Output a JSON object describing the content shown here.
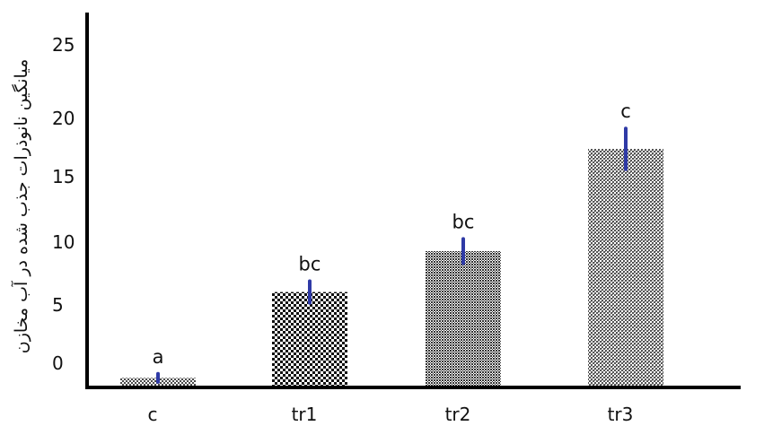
{
  "chart_data": {
    "type": "bar",
    "title": "",
    "xlabel": "",
    "ylabel": "میانگین نانوذرات جذب شده در آب مخازن",
    "categories": [
      "c",
      "tr1",
      "tr2",
      "tr3"
    ],
    "series": [
      {
        "values": [
          0.7,
          7.0,
          10.0,
          17.5
        ],
        "error": [
          0.3,
          0.8,
          0.9,
          1.5
        ],
        "significance": [
          "a",
          "bc",
          "bc",
          "c"
        ]
      }
    ],
    "y_tick_labels": [
      "0",
      "5",
      "10",
      "15",
      "20",
      "25"
    ],
    "ylim": [
      0,
      27.5
    ],
    "grid": false,
    "legend": "none",
    "colors": {
      "bar_fill": "#2b2b2b",
      "bar_background": "#ffffff",
      "error_bar": "#2f3aa6",
      "axis": "#000000"
    }
  }
}
